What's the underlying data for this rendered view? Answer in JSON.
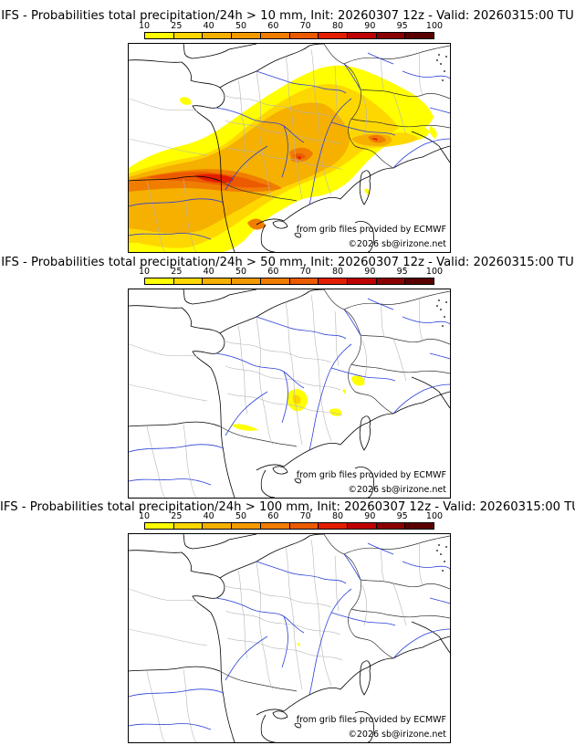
{
  "colorbar": {
    "ticks": [
      "10",
      "25",
      "40",
      "50",
      "60",
      "70",
      "80",
      "90",
      "95",
      "100"
    ],
    "colors": [
      "#ffff00",
      "#ffd700",
      "#f5b000",
      "#f39a00",
      "#f07d00",
      "#ec5a00",
      "#e31e00",
      "#bf0000",
      "#8a0000",
      "#5a0000"
    ]
  },
  "panels": [
    {
      "title": "IFS - Probabilities total precipitation/24h > 10 mm, Init: 20260307 12z - Valid: 20260315:00 TU",
      "credit_source": "from grib files provided by ECMWF",
      "credit_copyright": "©2026 sb@irizone.net"
    },
    {
      "title": "IFS - Probabilities total precipitation/24h > 50 mm, Init: 20260307 12z - Valid: 20260315:00 TU",
      "credit_source": "from grib files provided by ECMWF",
      "credit_copyright": "©2026 sb@irizone.net"
    },
    {
      "title": "IFS - Probabilities total precipitation/24h > 100 mm, Init: 20260307 12z - Valid: 20260315:00 TU",
      "credit_source": "from grib files provided by ECMWF",
      "credit_copyright": "©2026 sb@irizone.net"
    }
  ]
}
